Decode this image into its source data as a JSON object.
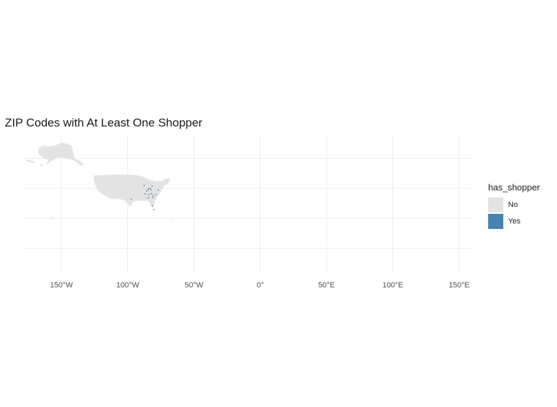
{
  "title": "ZIP Codes with At Least One Shopper",
  "chart_data": {
    "type": "map",
    "title": "ZIP Codes with At Least One Shopper",
    "projection": "lon-lat",
    "x_ticks": [
      {
        "lon": -150,
        "label": "150°W"
      },
      {
        "lon": -100,
        "label": "100°W"
      },
      {
        "lon": -50,
        "label": "50°W"
      },
      {
        "lon": 0,
        "label": "0°"
      },
      {
        "lon": 50,
        "label": "50°E"
      },
      {
        "lon": 100,
        "label": "100°E"
      },
      {
        "lon": 150,
        "label": "150°E"
      }
    ],
    "y_grid_lat": [
      60,
      40,
      20,
      0
    ],
    "grid": true,
    "legend": {
      "title": "has_shopper",
      "position": "right",
      "entries": [
        {
          "label": "No",
          "color": "#e3e3e3"
        },
        {
          "label": "Yes",
          "color": "#4682b4"
        }
      ]
    },
    "yes_points": [
      [
        -84.5,
        39.1
      ],
      [
        -84.2,
        39.8
      ],
      [
        -83.0,
        40.0
      ],
      [
        -82.5,
        38.9
      ],
      [
        -81.6,
        41.5
      ],
      [
        -85.7,
        38.2
      ],
      [
        -84.4,
        33.8
      ],
      [
        -81.0,
        34.0
      ],
      [
        -80.8,
        35.2
      ],
      [
        -82.0,
        36.5
      ],
      [
        -80.2,
        25.8
      ],
      [
        -97.3,
        32.8
      ],
      [
        -86.8,
        36.2
      ],
      [
        -83.9,
        35.9
      ],
      [
        -87.6,
        41.9
      ],
      [
        -78.6,
        35.8
      ],
      [
        -81.4,
        28.5
      ],
      [
        -77.0,
        38.9
      ]
    ]
  }
}
